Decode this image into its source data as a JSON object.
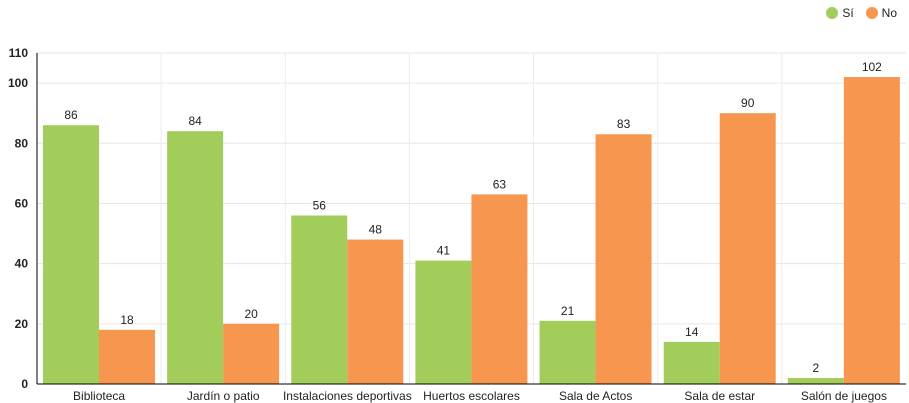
{
  "chart_data": {
    "type": "bar",
    "categories": [
      "Biblioteca",
      "Jardín o patio",
      "Instalaciones deportivas",
      "Huertos escolares",
      "Sala de Actos",
      "Sala de estar",
      "Salón de juegos"
    ],
    "series": [
      {
        "name": "Sí",
        "values": [
          86,
          84,
          56,
          41,
          21,
          14,
          2
        ],
        "color": "#a2cd5a"
      },
      {
        "name": "No",
        "values": [
          18,
          20,
          48,
          63,
          83,
          90,
          102
        ],
        "color": "#f7964f"
      }
    ],
    "ylim": [
      0,
      110
    ],
    "yticks": [
      0,
      20,
      40,
      60,
      80,
      100,
      110
    ],
    "grid": true,
    "legend": "top-right",
    "title": "",
    "xlabel": "",
    "ylabel": ""
  }
}
